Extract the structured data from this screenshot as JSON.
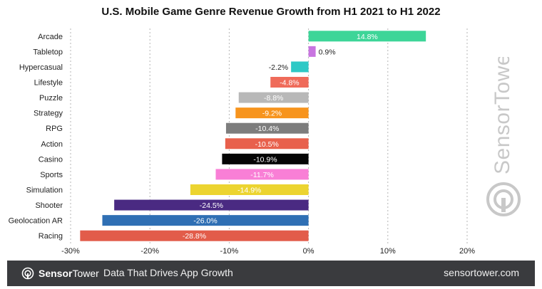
{
  "chart_data": {
    "type": "bar",
    "orientation": "horizontal",
    "title": "U.S. Mobile Game Genre Revenue Growth from H1 2021 to H1 2022",
    "categories": [
      "Arcade",
      "Tabletop",
      "Hypercasual",
      "Lifestyle",
      "Puzzle",
      "Strategy",
      "RPG",
      "Action",
      "Casino",
      "Sports",
      "Simulation",
      "Shooter",
      "Geolocation AR",
      "Racing"
    ],
    "values": [
      14.8,
      0.9,
      -2.2,
      -4.8,
      -8.8,
      -9.2,
      -10.4,
      -10.5,
      -10.9,
      -11.7,
      -14.9,
      -24.5,
      -26.0,
      -28.8
    ],
    "value_labels": [
      "14.8%",
      "0.9%",
      "-2.2%",
      "-4.8%",
      "-8.8%",
      "-9.2%",
      "-10.4%",
      "-10.5%",
      "-10.9%",
      "-11.7%",
      "-14.9%",
      "-24.5%",
      "-26.0%",
      "-28.8%"
    ],
    "colors": [
      "#3dd598",
      "#c874e0",
      "#2ec9c6",
      "#ef6b5a",
      "#b8b8b8",
      "#f7941d",
      "#7d7d7d",
      "#e8604c",
      "#050505",
      "#f97fd6",
      "#ecd430",
      "#4a2a82",
      "#2f6fb4",
      "#e25c4a"
    ],
    "label_colors": [
      "#ffffff",
      "#222222",
      "#222222",
      "#ffffff",
      "#ffffff",
      "#ffffff",
      "#ffffff",
      "#ffffff",
      "#ffffff",
      "#ffffff",
      "#ffffff",
      "#ffffff",
      "#ffffff",
      "#ffffff"
    ],
    "xlim": [
      -30,
      20
    ],
    "x_ticks": [
      -30,
      -20,
      -10,
      0,
      10,
      20
    ],
    "x_tick_labels": [
      "-30%",
      "-20%",
      "-10%",
      "0%",
      "10%",
      "20%"
    ],
    "grid": "vertical dotted",
    "xlabel": "",
    "ylabel": ""
  },
  "watermark": {
    "text": "SensorTower"
  },
  "footer": {
    "brand_bold": "Sensor",
    "brand_light": "Tower",
    "tagline": "Data That Drives App Growth",
    "url": "sensortower.com",
    "background": "#3a3b3e"
  }
}
